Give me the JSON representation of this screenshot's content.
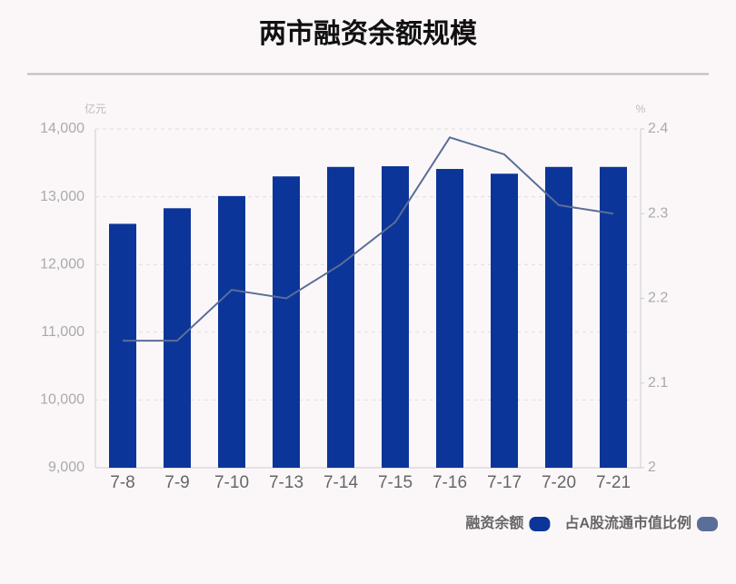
{
  "chart_data": {
    "type": "bar-line",
    "title": "两市融资余额规模",
    "y_unit": "亿元",
    "y2_unit": "%",
    "categories": [
      "7-8",
      "7-9",
      "7-10",
      "7-13",
      "7-14",
      "7-15",
      "7-16",
      "7-17",
      "7-20",
      "7-21"
    ],
    "series": [
      {
        "name": "融资余额",
        "type": "bar",
        "color": "#0c3599",
        "values": [
          12600,
          12830,
          13010,
          13300,
          13440,
          13450,
          13410,
          13340,
          13440,
          13440
        ]
      },
      {
        "name": "占A股流通市值比例",
        "type": "line",
        "axis": "y2",
        "color": "#5a6e98",
        "values": [
          2.15,
          2.15,
          2.21,
          2.2,
          2.24,
          2.29,
          2.39,
          2.37,
          2.31,
          2.3
        ]
      }
    ],
    "ylim": [
      9000,
      14000
    ],
    "yticks": [
      {
        "value": 9000,
        "label": "9,000"
      },
      {
        "value": 10000,
        "label": "10,000"
      },
      {
        "value": 11000,
        "label": "11,000"
      },
      {
        "value": 12000,
        "label": "12,000"
      },
      {
        "value": 13000,
        "label": "13,000"
      },
      {
        "value": 14000,
        "label": "14,000"
      }
    ],
    "y2lim": [
      2,
      2.4
    ],
    "y2ticks": [
      2,
      2.1,
      2.2,
      2.3,
      2.4
    ],
    "grid": true,
    "legend": "bottom-right"
  }
}
